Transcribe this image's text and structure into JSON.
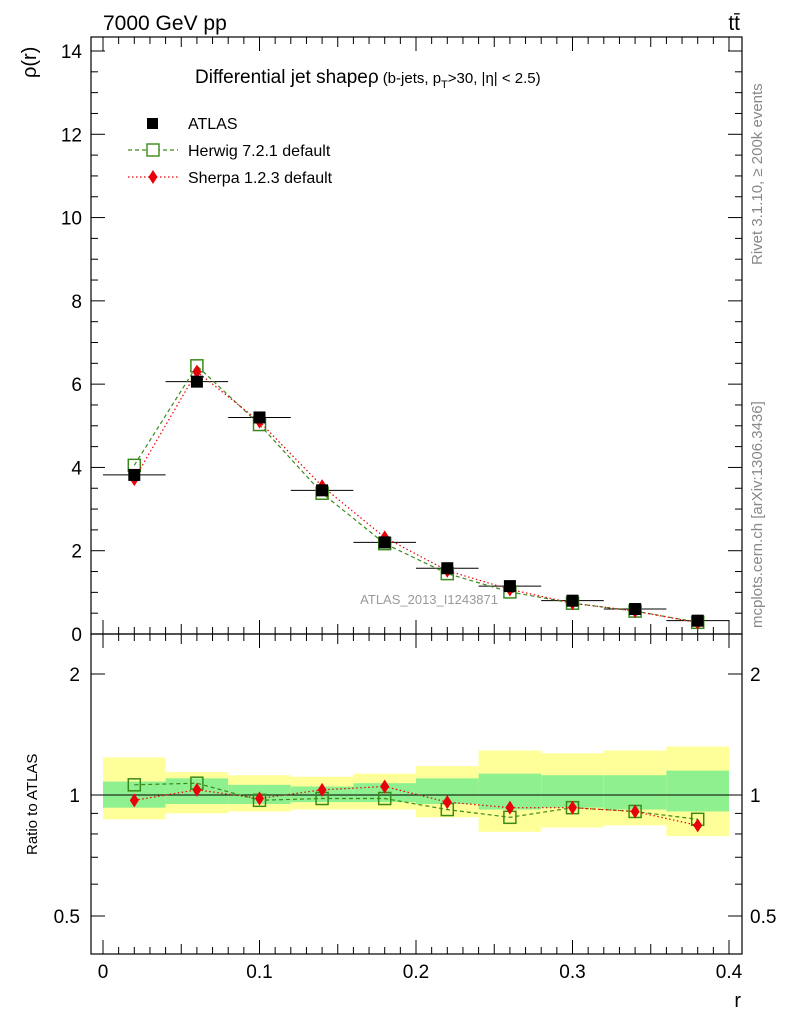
{
  "header": {
    "energy_label": "7000 GeV pp",
    "process_label": "tt̄",
    "title_main": "Differential jet shape",
    "title_rho": "ρ",
    "title_sub_a": "(b-jets, p",
    "title_sub_t": "T",
    "title_sub_b": ">30, |η| < 2.5)",
    "analysis_id": "ATLAS_2013_I1243871",
    "side_label_top": "Rivet 3.1.10, ≥ 200k events",
    "side_label_bottom": "mcplots.cern.ch [arXiv:1306.3436]"
  },
  "legend": {
    "atlas": "ATLAS",
    "herwig": "Herwig 7.2.1 default",
    "sherpa": "Sherpa 1.2.3 default"
  },
  "colors": {
    "atlas": "#000000",
    "herwig": "#3a8a1a",
    "sherpa": "#e8000a",
    "band_inner": "#8ef08e",
    "band_outer": "#ffff99",
    "watermark": "#999999"
  },
  "chart_data": [
    {
      "type": "scatter",
      "panel": "main",
      "ylabel": "ρ(r)",
      "xlabel": "r",
      "xlim": [
        -0.01,
        0.4
      ],
      "ylim": [
        0,
        14.5
      ],
      "yticks": [
        0,
        2,
        4,
        6,
        8,
        10,
        12,
        14
      ],
      "xticks": [
        0,
        0.1,
        0.2,
        0.3,
        0.4
      ],
      "x": [
        0.02,
        0.06,
        0.1,
        0.14,
        0.18,
        0.22,
        0.26,
        0.3,
        0.34,
        0.38
      ],
      "xerr": 0.02,
      "series": [
        {
          "name": "ATLAS",
          "key": "atlas",
          "marker": "square-filled",
          "values": [
            3.82,
            6.06,
            5.2,
            3.45,
            2.2,
            1.58,
            1.15,
            0.8,
            0.6,
            0.32
          ]
        },
        {
          "name": "Herwig 7.2.1 default",
          "key": "herwig",
          "marker": "square-open",
          "line": "dashed",
          "values": [
            4.05,
            6.44,
            5.03,
            3.38,
            2.17,
            1.45,
            1.01,
            0.74,
            0.55,
            0.28
          ]
        },
        {
          "name": "Sherpa 1.2.3 default",
          "key": "sherpa",
          "marker": "diamond",
          "line": "dotted",
          "values": [
            3.72,
            6.3,
            5.1,
            3.55,
            2.32,
            1.52,
            1.07,
            0.74,
            0.55,
            0.27
          ]
        }
      ]
    },
    {
      "type": "scatter",
      "panel": "ratio",
      "ylabel": "Ratio to ATLAS",
      "xlabel": "r",
      "ylim": [
        0.415,
        2.32
      ],
      "ytick_labels": [
        "0.5",
        "1",
        "2"
      ],
      "xtick_labels": [
        "0",
        "0.1",
        "0.2",
        "0.3",
        "0.4"
      ],
      "x": [
        0.02,
        0.06,
        0.1,
        0.14,
        0.18,
        0.22,
        0.26,
        0.3,
        0.34,
        0.38
      ],
      "bands": {
        "inner": [
          [
            0.93,
            1.08
          ],
          [
            0.95,
            1.1
          ],
          [
            0.95,
            1.06
          ],
          [
            0.96,
            1.05
          ],
          [
            0.96,
            1.07
          ],
          [
            0.95,
            1.1
          ],
          [
            0.92,
            1.13
          ],
          [
            0.93,
            1.12
          ],
          [
            0.92,
            1.12
          ],
          [
            0.91,
            1.15
          ]
        ],
        "outer": [
          [
            0.87,
            1.24
          ],
          [
            0.9,
            1.14
          ],
          [
            0.91,
            1.12
          ],
          [
            0.92,
            1.11
          ],
          [
            0.92,
            1.13
          ],
          [
            0.88,
            1.18
          ],
          [
            0.81,
            1.29
          ],
          [
            0.83,
            1.27
          ],
          [
            0.84,
            1.29
          ],
          [
            0.79,
            1.32
          ]
        ]
      },
      "series": [
        {
          "name": "Herwig 7.2.1 default",
          "key": "herwig",
          "marker": "square-open",
          "line": "dashed",
          "values": [
            1.06,
            1.07,
            0.97,
            0.98,
            0.98,
            0.92,
            0.88,
            0.93,
            0.91,
            0.87
          ]
        },
        {
          "name": "Sherpa 1.2.3 default",
          "key": "sherpa",
          "marker": "diamond",
          "line": "dotted",
          "values": [
            0.97,
            1.03,
            0.98,
            1.03,
            1.05,
            0.96,
            0.93,
            0.93,
            0.91,
            0.84
          ]
        }
      ]
    }
  ]
}
